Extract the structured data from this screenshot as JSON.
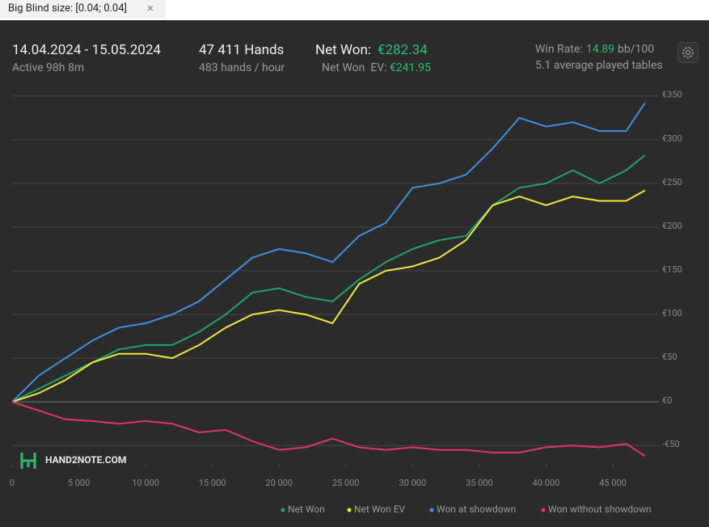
{
  "filter": {
    "label": "Big Blind size: [0.04; 0.04]",
    "close": "×"
  },
  "header": {
    "period": "14.04.2024 - 15.05.2024",
    "active": "Active 98h 8m",
    "hands": "47 411 Hands",
    "rate": "483 hands / hour",
    "net_won_label": "Net Won:",
    "net_won_value": "€282.34",
    "net_won_ev_label": "Net Won  EV:",
    "net_won_ev_value": "€241.95",
    "win_rate_label": "Win Rate:",
    "win_rate_value": "14.89",
    "win_rate_unit": "bb/100",
    "tables": "5.1 average played tables"
  },
  "logo": "HAND2NOTE.COM",
  "chart_data": {
    "type": "line",
    "x": [
      0,
      2000,
      4000,
      6000,
      8000,
      10000,
      12000,
      14000,
      16000,
      18000,
      20000,
      22000,
      24000,
      26000,
      28000,
      30000,
      32000,
      34000,
      36000,
      38000,
      40000,
      42000,
      44000,
      46000,
      47411
    ],
    "series": [
      {
        "name": "Net Won",
        "color": "#1fa463",
        "values": [
          0,
          15,
          30,
          45,
          60,
          65,
          65,
          80,
          100,
          125,
          130,
          120,
          115,
          140,
          160,
          175,
          185,
          190,
          225,
          245,
          250,
          265,
          250,
          265,
          282.34
        ]
      },
      {
        "name": "Net Won  EV",
        "color": "#f2e93b",
        "values": [
          0,
          10,
          25,
          45,
          55,
          55,
          50,
          65,
          85,
          100,
          105,
          100,
          90,
          135,
          150,
          155,
          165,
          185,
          225,
          235,
          225,
          235,
          230,
          230,
          241.95
        ]
      },
      {
        "name": "Won at showdown",
        "color": "#3d8fe3",
        "values": [
          0,
          30,
          50,
          70,
          85,
          90,
          100,
          115,
          140,
          165,
          175,
          170,
          160,
          190,
          205,
          245,
          250,
          260,
          290,
          325,
          315,
          320,
          310,
          310,
          342
        ]
      },
      {
        "name": "Won without showdown",
        "color": "#e0336e",
        "values": [
          0,
          -10,
          -20,
          -22,
          -25,
          -22,
          -25,
          -35,
          -32,
          -45,
          -55,
          -52,
          -42,
          -52,
          -55,
          -52,
          -55,
          -55,
          -58,
          -58,
          -52,
          -50,
          -52,
          -48,
          -62
        ]
      }
    ],
    "xlim": [
      0,
      48450
    ],
    "xticks": [
      0,
      {
        "value": 5000,
        "label": "5 000"
      },
      {
        "value": 10000,
        "label": "10 000"
      },
      {
        "value": 15000,
        "label": "15 000"
      },
      {
        "value": 20000,
        "label": "20 000"
      },
      {
        "value": 25000,
        "label": "25 000"
      },
      {
        "value": 30000,
        "label": "30 000"
      },
      {
        "value": 35000,
        "label": "35 000"
      },
      {
        "value": 40000,
        "label": "40 000"
      },
      {
        "value": 45000,
        "label": "45 000"
      }
    ],
    "ylim": [
      -72,
      360
    ],
    "yticks": [
      {
        "value": -50,
        "label": "-€50"
      },
      {
        "value": 0,
        "label": "€0"
      },
      {
        "value": 50,
        "label": "€50"
      },
      {
        "value": 100,
        "label": "€100"
      },
      {
        "value": 150,
        "label": "€150"
      },
      {
        "value": 200,
        "label": "€200"
      },
      {
        "value": 250,
        "label": "€250"
      },
      {
        "value": 300,
        "label": "€300"
      },
      {
        "value": 350,
        "label": "€350"
      }
    ],
    "grid": true
  }
}
